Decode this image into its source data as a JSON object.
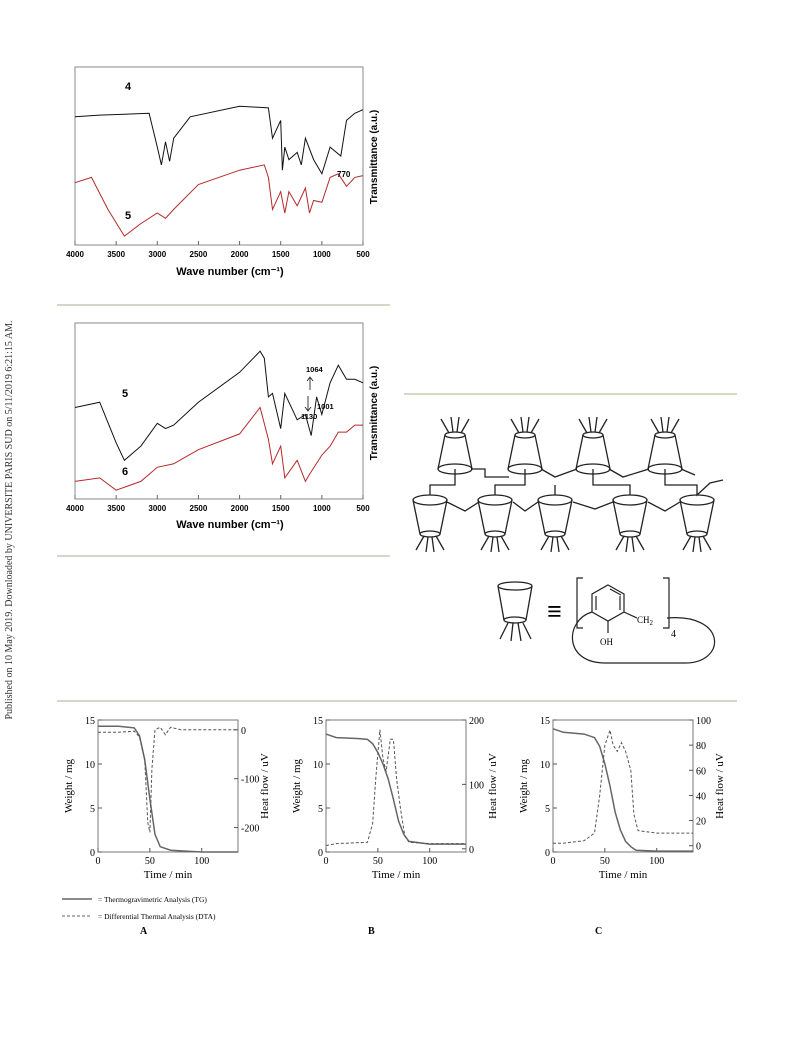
{
  "side_note": "Published on 10 May 2019. Downloaded by UNIVERSITE PARIS SUD on 5/11/2019 6:21:15 AM.",
  "ir1": {
    "xlabel": "Wave number (cm⁻¹)",
    "ylabel": "Transmittance (a.u.)",
    "ticks": [
      "4000",
      "3500",
      "3000",
      "2500",
      "2000",
      "1500",
      "1000",
      "500"
    ],
    "labels": [
      "4",
      "5"
    ],
    "annotation": "770",
    "colors": {
      "top": "#111111",
      "bottom": "#b52a2a"
    }
  },
  "ir2": {
    "xlabel": "Wave number (cm⁻¹)",
    "ylabel": "Transmittance (a.u.)",
    "ticks": [
      "4000",
      "3500",
      "3000",
      "2500",
      "2000",
      "1500",
      "1000",
      "500"
    ],
    "labels": [
      "5",
      "6"
    ],
    "annotations": [
      "1064",
      "1001",
      "1130"
    ],
    "colors": {
      "top": "#111111",
      "bottom": "#b52a2a"
    }
  },
  "scheme": {
    "equiv": "≡",
    "oh": "OH",
    "ch2": "CH",
    "ch2_sub": "2",
    "n": "4"
  },
  "tga": {
    "xlabel": "Time / min",
    "ylabel_left": "Weight / mg",
    "ylabel_right": "Heat flow / uV",
    "legend_tg": "= Thermogravimetric Analysis (TG)",
    "legend_dta": "= Differential Thermal Analysis (DTA)",
    "panels": [
      {
        "letter": "A",
        "x_ticks": [
          "0",
          "50",
          "100"
        ],
        "left_ticks": [
          "0",
          "5",
          "10",
          "15"
        ],
        "right_ticks": [
          "0",
          "-100",
          "-200"
        ]
      },
      {
        "letter": "B",
        "x_ticks": [
          "0",
          "50",
          "100"
        ],
        "left_ticks": [
          "0",
          "5",
          "10",
          "15"
        ],
        "right_ticks": [
          "0",
          "100",
          "200"
        ]
      },
      {
        "letter": "C",
        "x_ticks": [
          "0",
          "50",
          "100"
        ],
        "left_ticks": [
          "0",
          "5",
          "10",
          "15"
        ],
        "right_ticks": [
          "0",
          "20",
          "40",
          "60",
          "80",
          "100"
        ]
      }
    ]
  },
  "chart_data": [
    {
      "type": "line",
      "xlabel": "Wave number (cm⁻¹)",
      "ylabel": "Transmittance (a.u.)",
      "xlim": [
        4000,
        500
      ],
      "series": [
        {
          "name": "4",
          "x": [
            4000,
            3700,
            3100,
            3000,
            2950,
            2900,
            2850,
            2800,
            2600,
            2000,
            1650,
            1600,
            1500,
            1480,
            1450,
            1400,
            1300,
            1250,
            1200,
            1100,
            1000,
            900,
            770,
            700,
            600,
            500
          ],
          "y": [
            0.72,
            0.73,
            0.74,
            0.55,
            0.45,
            0.58,
            0.47,
            0.6,
            0.72,
            0.78,
            0.77,
            0.6,
            0.7,
            0.42,
            0.55,
            0.48,
            0.52,
            0.45,
            0.6,
            0.48,
            0.4,
            0.55,
            0.5,
            0.7,
            0.74,
            0.76
          ]
        },
        {
          "name": "5",
          "x": [
            4000,
            3800,
            3600,
            3400,
            3200,
            3000,
            2900,
            2800,
            2500,
            2000,
            1700,
            1650,
            1600,
            1500,
            1450,
            1400,
            1300,
            1200,
            1150,
            1100,
            1000,
            900,
            800,
            700,
            600,
            500
          ],
          "y": [
            0.35,
            0.38,
            0.2,
            0.05,
            0.12,
            0.18,
            0.15,
            0.2,
            0.34,
            0.42,
            0.45,
            0.38,
            0.2,
            0.3,
            0.18,
            0.3,
            0.22,
            0.32,
            0.18,
            0.25,
            0.24,
            0.38,
            0.4,
            0.33,
            0.38,
            0.39
          ]
        }
      ]
    },
    {
      "type": "line",
      "xlabel": "Wave number (cm⁻¹)",
      "ylabel": "Transmittance (a.u.)",
      "xlim": [
        4000,
        500
      ],
      "series": [
        {
          "name": "5",
          "x": [
            4000,
            3700,
            3500,
            3400,
            3200,
            3000,
            2900,
            2800,
            2500,
            2000,
            1750,
            1700,
            1650,
            1600,
            1500,
            1450,
            1300,
            1200,
            1130,
            1064,
            1001,
            900,
            800,
            700,
            600,
            500
          ],
          "y": [
            0.52,
            0.55,
            0.32,
            0.22,
            0.3,
            0.43,
            0.4,
            0.42,
            0.55,
            0.72,
            0.84,
            0.8,
            0.58,
            0.6,
            0.4,
            0.6,
            0.45,
            0.48,
            0.36,
            0.58,
            0.48,
            0.66,
            0.76,
            0.68,
            0.68,
            0.66
          ]
        },
        {
          "name": "6",
          "x": [
            4000,
            3700,
            3500,
            3200,
            3000,
            2800,
            2500,
            2000,
            1750,
            1650,
            1600,
            1500,
            1450,
            1300,
            1200,
            1150,
            1000,
            900,
            800,
            700,
            600,
            500
          ],
          "y": [
            0.1,
            0.12,
            0.05,
            0.1,
            0.18,
            0.2,
            0.28,
            0.37,
            0.52,
            0.34,
            0.2,
            0.3,
            0.12,
            0.22,
            0.1,
            0.14,
            0.25,
            0.3,
            0.38,
            0.38,
            0.42,
            0.42
          ]
        }
      ]
    },
    {
      "type": "line",
      "title": "A",
      "xlabel": "Time / min",
      "ylabel": "Weight / mg",
      "y2label": "Heat flow / uV",
      "xlim": [
        0,
        135
      ],
      "ylim": [
        0,
        15
      ],
      "y2lim": [
        -250,
        20
      ],
      "series": [
        {
          "name": "TG",
          "axis": "left",
          "x": [
            0,
            20,
            35,
            40,
            45,
            50,
            55,
            60,
            70,
            100,
            135
          ],
          "y": [
            14.3,
            14.3,
            14.1,
            13.2,
            10.5,
            6.0,
            2.0,
            0.6,
            0.2,
            0.0,
            0.0
          ]
        },
        {
          "name": "DTA",
          "axis": "right",
          "x": [
            0,
            20,
            35,
            40,
            45,
            48,
            50,
            52,
            55,
            60,
            65,
            70,
            80,
            100,
            135
          ],
          "y": [
            -5,
            -5,
            -3,
            -15,
            -60,
            -190,
            -210,
            -80,
            0,
            5,
            -10,
            5,
            0,
            0,
            0
          ]
        }
      ]
    },
    {
      "type": "line",
      "title": "B",
      "xlabel": "Time / min",
      "ylabel": "Weight / mg",
      "y2label": "Heat flow / uV",
      "xlim": [
        0,
        135
      ],
      "ylim": [
        0,
        15
      ],
      "y2lim": [
        -5,
        200
      ],
      "series": [
        {
          "name": "TG",
          "axis": "left",
          "x": [
            0,
            10,
            30,
            40,
            45,
            50,
            55,
            60,
            65,
            70,
            75,
            80,
            100,
            135
          ],
          "y": [
            13.4,
            13.0,
            12.9,
            12.8,
            12.3,
            11.3,
            10.0,
            8.3,
            6.0,
            3.5,
            2.0,
            1.2,
            0.9,
            0.9
          ]
        },
        {
          "name": "DTA",
          "axis": "right",
          "x": [
            0,
            10,
            40,
            45,
            48,
            52,
            55,
            58,
            62,
            65,
            68,
            72,
            76,
            80,
            100,
            135
          ],
          "y": [
            5,
            8,
            10,
            40,
            110,
            185,
            140,
            120,
            170,
            170,
            110,
            60,
            20,
            10,
            8,
            8
          ]
        }
      ]
    },
    {
      "type": "line",
      "title": "C",
      "xlabel": "Time / min",
      "ylabel": "Weight / mg",
      "y2label": "Heat flow / uV",
      "xlim": [
        0,
        135
      ],
      "ylim": [
        0,
        15
      ],
      "y2lim": [
        -5,
        100
      ],
      "series": [
        {
          "name": "TG",
          "axis": "left",
          "x": [
            0,
            10,
            30,
            40,
            45,
            50,
            55,
            60,
            65,
            70,
            75,
            80,
            100,
            135
          ],
          "y": [
            14.0,
            13.6,
            13.4,
            13.0,
            12.0,
            10.0,
            7.5,
            4.5,
            2.5,
            1.2,
            0.6,
            0.2,
            0.1,
            0.1
          ]
        },
        {
          "name": "DTA",
          "axis": "right",
          "x": [
            0,
            10,
            30,
            40,
            45,
            50,
            55,
            58,
            62,
            66,
            70,
            75,
            78,
            82,
            100,
            135
          ],
          "y": [
            2,
            2,
            4,
            10,
            40,
            80,
            92,
            80,
            75,
            82,
            75,
            60,
            25,
            12,
            10,
            10
          ]
        }
      ]
    }
  ]
}
